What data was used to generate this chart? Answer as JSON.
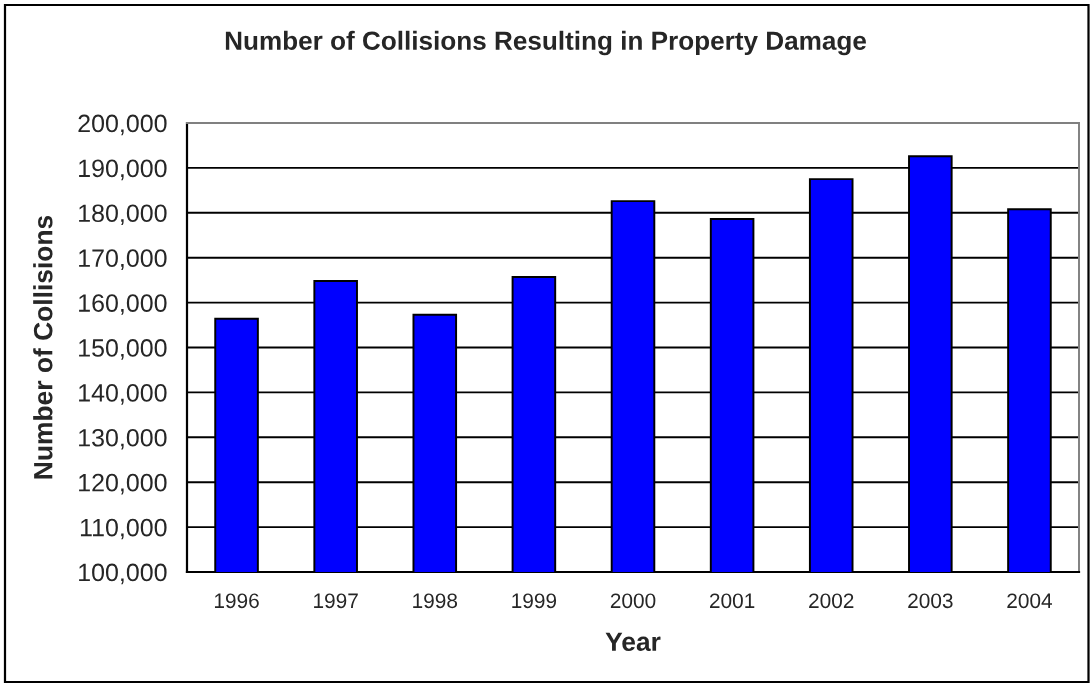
{
  "chart_data": {
    "type": "bar",
    "title": "Number of Collisions Resulting in Property Damage",
    "xlabel": "Year",
    "ylabel": "Number of Collisions",
    "categories": [
      "1996",
      "1997",
      "1998",
      "1999",
      "2000",
      "2001",
      "2002",
      "2003",
      "2004"
    ],
    "values": [
      156400,
      164800,
      157300,
      165700,
      182600,
      178600,
      187500,
      192600,
      180800
    ],
    "color": "#0000ff",
    "ylim": [
      100000,
      200000
    ],
    "yticks": [
      {
        "value": 100000,
        "label": "100,000"
      },
      {
        "value": 110000,
        "label": "110,000"
      },
      {
        "value": 120000,
        "label": "120,000"
      },
      {
        "value": 130000,
        "label": "130,000"
      },
      {
        "value": 140000,
        "label": "140,000"
      },
      {
        "value": 150000,
        "label": "150,000"
      },
      {
        "value": 160000,
        "label": "160,000"
      },
      {
        "value": 170000,
        "label": "170,000"
      },
      {
        "value": 180000,
        "label": "180,000"
      },
      {
        "value": 190000,
        "label": "190,000"
      },
      {
        "value": 200000,
        "label": "200,000"
      }
    ],
    "grid": "y"
  }
}
